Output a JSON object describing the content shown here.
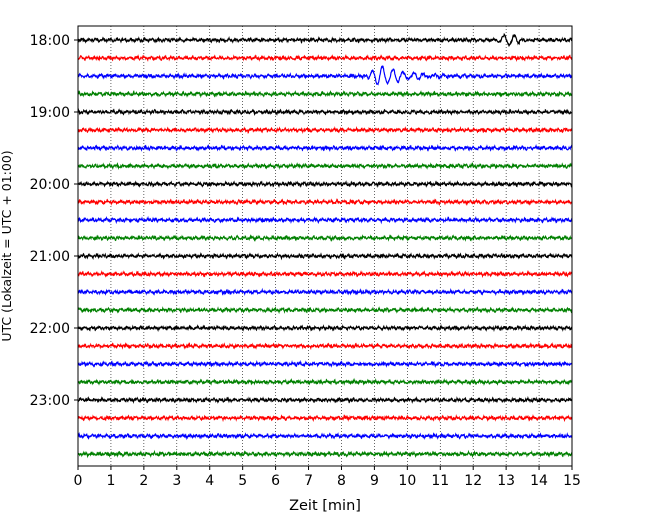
{
  "chart_data": {
    "type": "line",
    "title": "",
    "xlabel": "Zeit  [min]",
    "ylabel": "UTC (Lokalzeit = UTC + 01:00)",
    "xlim": [
      0,
      15
    ],
    "x_ticks": [
      "0",
      "1",
      "2",
      "3",
      "4",
      "5",
      "6",
      "7",
      "8",
      "9",
      "10",
      "11",
      "12",
      "13",
      "14",
      "15"
    ],
    "y_tick_labels": [
      "18:00",
      "19:00",
      "20:00",
      "21:00",
      "22:00",
      "23:00"
    ],
    "trace_interval_minutes": 15,
    "trace_count": 24,
    "grid": "vertical-dotted",
    "trace_colors": [
      "#000000",
      "#ff0000",
      "#0000ff",
      "#008000"
    ],
    "events": [
      {
        "trace": 0,
        "start_min": 12.7,
        "end_min": 13.4,
        "peak_min": 12.95,
        "amplitude": 6
      },
      {
        "trace": 2,
        "start_min": 8.7,
        "end_min": 15.0,
        "peak_min": 9.2,
        "amplitude": 10
      }
    ]
  }
}
